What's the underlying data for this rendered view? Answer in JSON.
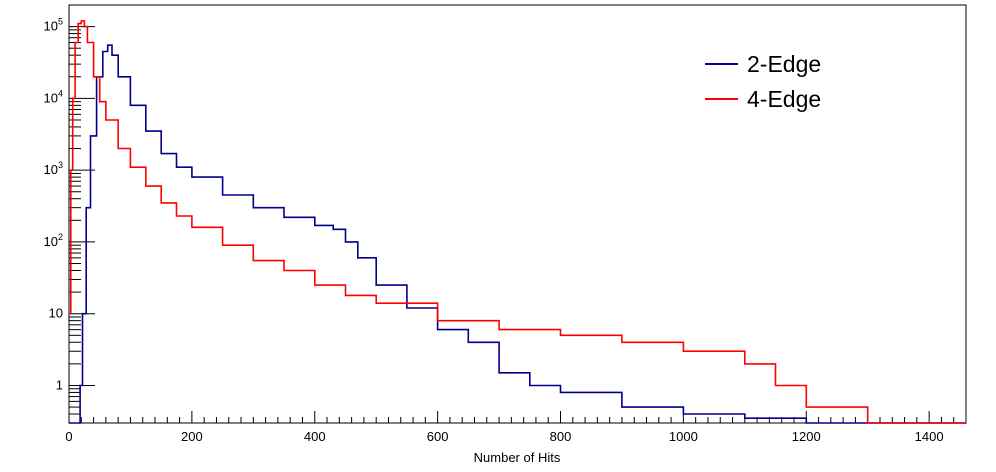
{
  "chart_data": {
    "type": "line",
    "title": "",
    "xlabel": "Number of Hits",
    "ylabel": "",
    "xlim": [
      0,
      1460
    ],
    "ylim": [
      0.3,
      200000
    ],
    "y_scale": "log",
    "grid": false,
    "legend_position": "top-right",
    "x_ticks": [
      0,
      200,
      400,
      600,
      800,
      1000,
      1200,
      1400
    ],
    "y_ticks": [
      {
        "value": 1,
        "label": "1"
      },
      {
        "value": 10,
        "label": "10"
      },
      {
        "value": 100,
        "label": "10",
        "exp": "2"
      },
      {
        "value": 1000,
        "label": "10",
        "exp": "3"
      },
      {
        "value": 10000,
        "label": "10",
        "exp": "4"
      },
      {
        "value": 100000,
        "label": "10",
        "exp": "5"
      }
    ],
    "series": [
      {
        "name": "2-Edge",
        "color": "#00008b",
        "x": [
          0,
          10,
          18,
          22,
          28,
          35,
          45,
          55,
          63,
          70,
          80,
          100,
          125,
          150,
          175,
          200,
          250,
          300,
          350,
          400,
          430,
          450,
          470,
          500,
          550,
          600,
          650,
          700,
          750,
          800,
          900,
          1000,
          1100,
          1200,
          1300,
          1400,
          1460
        ],
        "y": [
          0.3,
          0.3,
          1,
          10,
          300,
          3000,
          20000,
          45000,
          55000,
          40000,
          20000,
          8000,
          3500,
          1700,
          1100,
          800,
          450,
          300,
          220,
          170,
          150,
          100,
          60,
          25,
          12,
          6,
          4,
          1.5,
          1,
          0.8,
          0.5,
          0.4,
          0.35,
          0.3,
          0.3,
          0.3,
          0.3
        ]
      },
      {
        "name": "4-Edge",
        "color": "#ff0000",
        "x": [
          0,
          3,
          6,
          10,
          15,
          20,
          25,
          30,
          40,
          50,
          60,
          80,
          100,
          125,
          150,
          175,
          200,
          250,
          300,
          350,
          400,
          450,
          500,
          600,
          700,
          800,
          900,
          1000,
          1100,
          1150,
          1200,
          1300,
          1400,
          1460
        ],
        "y": [
          10,
          1000,
          10000,
          60000,
          110000,
          120000,
          100000,
          60000,
          20000,
          9000,
          5000,
          2000,
          1100,
          600,
          350,
          230,
          160,
          90,
          55,
          40,
          25,
          18,
          14,
          8,
          6,
          5,
          4,
          3,
          2,
          1,
          0.5,
          0.3,
          0.3,
          0.3
        ]
      }
    ]
  }
}
